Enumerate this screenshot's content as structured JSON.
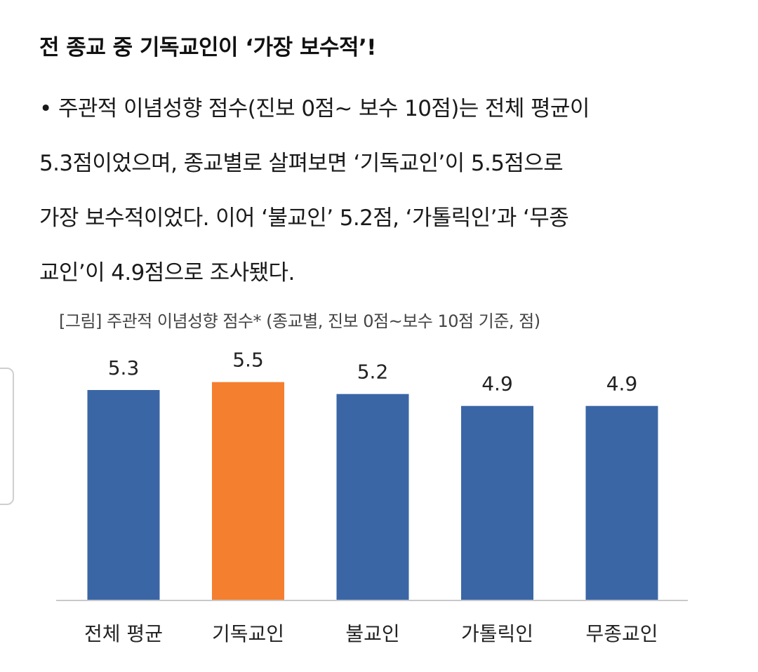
{
  "headline": "전 종교 중 기독교인이 ‘가장 보수적’!",
  "body_lines": [
    "• 주관적 이념성향 점수(진보 0점~ 보수 10점)는 전체 평균이",
    "5.3점이었으며, 종교별로 살펴보면 ‘기독교인’이 5.5점으로",
    "가장 보수적이었다. 이어 ‘불교인’ 5.2점, ‘가톨릭인’과 ‘무종",
    "교인’이 4.9점으로 조사됐다."
  ],
  "chart_data": {
    "type": "bar",
    "title": "[그림] 주관적 이념성향 점수* (종교별, 진보 0점~보수 10점 기준, 점)",
    "categories": [
      "전체 평균",
      "기독교인",
      "불교인",
      "가톨릭인",
      "무종교인"
    ],
    "values": [
      5.3,
      5.5,
      5.2,
      4.9,
      4.9
    ],
    "value_labels": [
      "5.3",
      "5.5",
      "5.2",
      "4.9",
      "4.9"
    ],
    "highlight_index": 1,
    "colors": {
      "default": "#3a66a5",
      "highlight": "#f47f2f",
      "baseline": "#c8c8c8",
      "label": "#222222"
    },
    "xlabel": "",
    "ylabel": "",
    "grid": false,
    "legend": "none"
  }
}
